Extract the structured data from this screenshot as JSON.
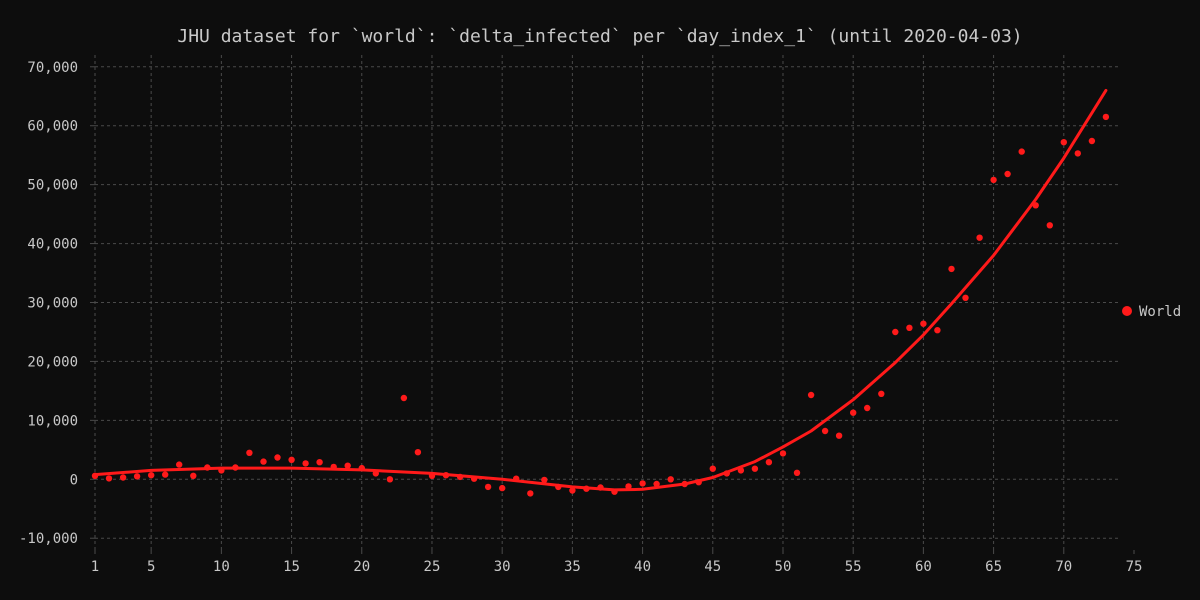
{
  "chart_data": {
    "type": "scatter",
    "title": "JHU dataset for `world`: `delta_infected` per `day_index_1` (until 2020-04-03)",
    "xlabel": "",
    "ylabel": "",
    "xlim": [
      1,
      75
    ],
    "ylim": [
      -12000,
      72000
    ],
    "x_ticks": [
      1,
      5,
      10,
      15,
      20,
      25,
      30,
      35,
      40,
      45,
      50,
      55,
      60,
      65,
      70,
      75
    ],
    "y_ticks": [
      -10000,
      0,
      10000,
      20000,
      30000,
      40000,
      50000,
      60000,
      70000
    ],
    "y_tick_labels": [
      "-10,000",
      "0",
      "10,000",
      "20,000",
      "30,000",
      "40,000",
      "50,000",
      "60,000",
      "70,000"
    ],
    "grid": true,
    "legend_position": "right",
    "series": [
      {
        "name": "World",
        "color": "#ff1a1a",
        "points": [
          [
            1,
            600
          ],
          [
            2,
            150
          ],
          [
            3,
            300
          ],
          [
            4,
            500
          ],
          [
            5,
            700
          ],
          [
            6,
            800
          ],
          [
            7,
            2500
          ],
          [
            8,
            600
          ],
          [
            9,
            2000
          ],
          [
            10,
            1500
          ],
          [
            11,
            2000
          ],
          [
            12,
            4500
          ],
          [
            13,
            3000
          ],
          [
            14,
            3700
          ],
          [
            15,
            3300
          ],
          [
            16,
            2700
          ],
          [
            17,
            2900
          ],
          [
            18,
            2100
          ],
          [
            19,
            2300
          ],
          [
            20,
            1900
          ],
          [
            21,
            1000
          ],
          [
            22,
            0
          ],
          [
            23,
            13800
          ],
          [
            24,
            4600
          ],
          [
            25,
            600
          ],
          [
            26,
            700
          ],
          [
            27,
            400
          ],
          [
            28,
            100
          ],
          [
            29,
            -1300
          ],
          [
            30,
            -1500
          ],
          [
            31,
            100
          ],
          [
            32,
            -2400
          ],
          [
            33,
            -100
          ],
          [
            34,
            -1300
          ],
          [
            35,
            -1900
          ],
          [
            36,
            -1600
          ],
          [
            37,
            -1400
          ],
          [
            38,
            -2100
          ],
          [
            39,
            -1200
          ],
          [
            40,
            -700
          ],
          [
            41,
            -800
          ],
          [
            42,
            0
          ],
          [
            43,
            -800
          ],
          [
            44,
            -500
          ],
          [
            45,
            1800
          ],
          [
            46,
            1000
          ],
          [
            47,
            1500
          ],
          [
            48,
            1800
          ],
          [
            49,
            2900
          ],
          [
            50,
            4400
          ],
          [
            51,
            1100
          ],
          [
            52,
            14300
          ],
          [
            53,
            8200
          ],
          [
            54,
            7400
          ],
          [
            55,
            11300
          ],
          [
            56,
            12100
          ],
          [
            57,
            14500
          ],
          [
            58,
            25000
          ],
          [
            59,
            25700
          ],
          [
            60,
            26400
          ],
          [
            61,
            25300
          ],
          [
            62,
            35700
          ],
          [
            63,
            30800
          ],
          [
            64,
            41000
          ],
          [
            65,
            50800
          ],
          [
            66,
            51800
          ],
          [
            67,
            55600
          ],
          [
            68,
            46500
          ],
          [
            69,
            43100
          ],
          [
            70,
            57200
          ],
          [
            71,
            55300
          ],
          [
            72,
            57400
          ],
          [
            73,
            61500
          ]
        ],
        "trend": [
          [
            1,
            800
          ],
          [
            5,
            1500
          ],
          [
            10,
            1900
          ],
          [
            15,
            1900
          ],
          [
            20,
            1600
          ],
          [
            25,
            1000
          ],
          [
            30,
            0
          ],
          [
            35,
            -1300
          ],
          [
            38,
            -1800
          ],
          [
            40,
            -1700
          ],
          [
            43,
            -800
          ],
          [
            45,
            300
          ],
          [
            48,
            3000
          ],
          [
            50,
            5500
          ],
          [
            52,
            8200
          ],
          [
            55,
            13500
          ],
          [
            58,
            19800
          ],
          [
            60,
            24500
          ],
          [
            62,
            29800
          ],
          [
            65,
            38000
          ],
          [
            68,
            47500
          ],
          [
            70,
            54500
          ],
          [
            73,
            66000
          ]
        ]
      }
    ]
  }
}
